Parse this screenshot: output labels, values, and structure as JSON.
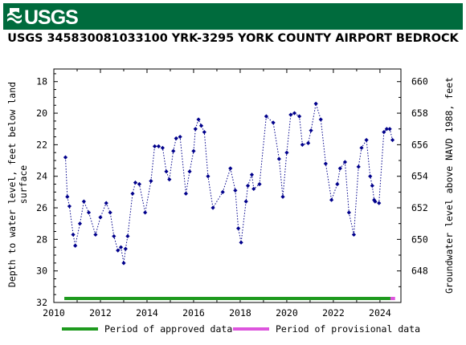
{
  "header": {
    "logo_text": "USGS",
    "title": "USGS 345830081033100 YRK-3295 YORK COUNTY AIRPORT BEDROCK"
  },
  "colors": {
    "banner": "#006b3d",
    "data_points": "#00008b",
    "approved": "#1e9a1e",
    "provisional": "#dd55dd"
  },
  "chart_data": {
    "type": "scatter",
    "title": "USGS 345830081033100 YRK-3295 YORK COUNTY AIRPORT BEDROCK",
    "xlabel": "",
    "ylabel": "Depth to water level, feet below land surface",
    "y2label": "Groundwater level above NAVD 1988, feet",
    "xlim": [
      2010,
      2024.9
    ],
    "ylim": [
      17.2,
      32.0
    ],
    "y_inverted": true,
    "y2lim": [
      660.8,
      646.0
    ],
    "x_ticks": [
      2010,
      2012,
      2014,
      2016,
      2018,
      2020,
      2022,
      2024
    ],
    "x_tick_labels": [
      "2010",
      "2012",
      "2014",
      "2016",
      "2018",
      "2020",
      "2022",
      "2024"
    ],
    "y_ticks": [
      18,
      20,
      22,
      24,
      26,
      28,
      30,
      32
    ],
    "y_tick_labels": [
      "18",
      "20",
      "22",
      "24",
      "26",
      "28",
      "30",
      "32"
    ],
    "y2_ticks": [
      648,
      650,
      652,
      654,
      656,
      658,
      660
    ],
    "y2_tick_labels": [
      "648",
      "650",
      "652",
      "654",
      "656",
      "658",
      "660"
    ],
    "grid": false,
    "legend": "bottom",
    "series": [
      {
        "name": "",
        "style": "dotted-line-with-markers",
        "x": [
          2010.5,
          2010.58,
          2010.67,
          2010.83,
          2010.92,
          2011.12,
          2011.29,
          2011.5,
          2011.79,
          2012.0,
          2012.25,
          2012.42,
          2012.58,
          2012.75,
          2012.88,
          2013.0,
          2013.08,
          2013.17,
          2013.38,
          2013.5,
          2013.67,
          2013.92,
          2014.17,
          2014.33,
          2014.5,
          2014.67,
          2014.83,
          2014.96,
          2015.13,
          2015.25,
          2015.42,
          2015.67,
          2015.83,
          2016.0,
          2016.08,
          2016.21,
          2016.33,
          2016.46,
          2016.62,
          2016.83,
          2017.25,
          2017.58,
          2017.79,
          2017.92,
          2018.04,
          2018.25,
          2018.33,
          2018.5,
          2018.58,
          2018.83,
          2019.12,
          2019.42,
          2019.67,
          2019.83,
          2020.0,
          2020.17,
          2020.33,
          2020.54,
          2020.67,
          2020.92,
          2021.04,
          2021.25,
          2021.46,
          2021.67,
          2021.92,
          2022.17,
          2022.29,
          2022.5,
          2022.67,
          2022.88,
          2023.08,
          2023.21,
          2023.42,
          2023.58,
          2023.67,
          2023.75,
          2023.79,
          2023.96,
          2024.17,
          2024.29,
          2024.42,
          2024.54
        ],
        "y": [
          22.8,
          25.3,
          25.9,
          27.7,
          28.4,
          27.0,
          25.6,
          26.3,
          27.7,
          26.6,
          25.7,
          26.3,
          27.8,
          28.7,
          28.5,
          29.5,
          28.6,
          27.8,
          25.1,
          24.4,
          24.5,
          26.3,
          24.3,
          22.1,
          22.1,
          22.2,
          23.7,
          24.2,
          22.4,
          21.6,
          21.5,
          25.1,
          23.7,
          22.4,
          21.0,
          20.4,
          20.8,
          21.2,
          24.0,
          26.0,
          25.0,
          23.5,
          24.9,
          27.3,
          28.2,
          25.6,
          24.6,
          23.9,
          24.8,
          24.5,
          20.2,
          20.6,
          22.9,
          25.3,
          22.5,
          20.1,
          20.0,
          20.2,
          22.0,
          21.9,
          21.1,
          19.4,
          20.4,
          23.2,
          25.5,
          24.5,
          23.5,
          23.1,
          26.3,
          27.7,
          23.4,
          22.2,
          21.7,
          24.0,
          24.6,
          25.5,
          25.6,
          25.7,
          21.2,
          21.0,
          21.0,
          21.7
        ]
      }
    ],
    "periods": [
      {
        "name": "Period of approved data",
        "start": 2010.45,
        "end": 2024.45,
        "color": "#1e9a1e"
      },
      {
        "name": "Period of provisional data",
        "start": 2024.45,
        "end": 2024.65,
        "color": "#dd55dd"
      }
    ]
  }
}
